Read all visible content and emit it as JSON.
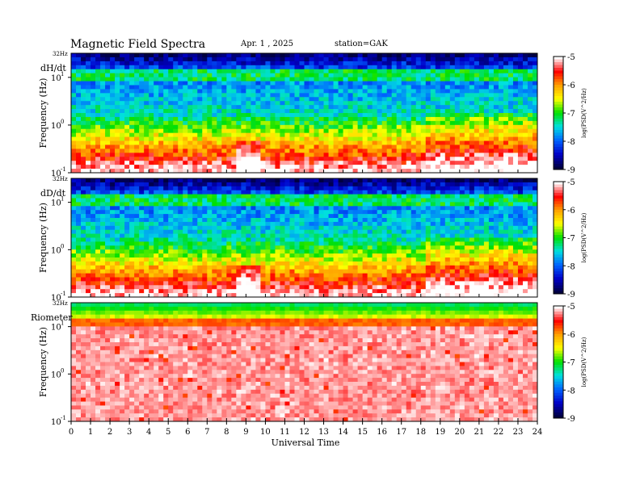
{
  "header": {
    "title": "Magnetic  Field  Spectra",
    "date": "Apr. 1  , 2025",
    "station": "station=GAK"
  },
  "colors": {
    "colormap": [
      "#ffffff",
      "#ff0000",
      "#ffa000",
      "#ffff00",
      "#00e000",
      "#00e0e0",
      "#0064ff",
      "#0000c8",
      "#000040"
    ]
  },
  "chart_data": [
    {
      "type": "heatmap",
      "panel_label": "dH/dt",
      "ylabel": "Frequency  (Hz)",
      "top_label": "32Hz",
      "yticks": [
        "10",
        "10",
        "10"
      ],
      "yexps": [
        "1",
        "0",
        "-1"
      ],
      "ylog": true,
      "ylim": [
        0.1,
        32
      ],
      "xlim": [
        0,
        24
      ],
      "colorbar": {
        "label": "log(PSD(V^2/Hz)",
        "range": [
          -9,
          -5
        ],
        "ticks": [
          "-5",
          "-6",
          "-7",
          "-8",
          "-9"
        ]
      }
    },
    {
      "type": "heatmap",
      "panel_label": "dD/dt",
      "ylabel": "Frequency  (Hz)",
      "top_label": "32Hz",
      "yticks": [
        "10",
        "10",
        "10"
      ],
      "yexps": [
        "1",
        "0",
        "-1"
      ],
      "ylog": true,
      "ylim": [
        0.1,
        32
      ],
      "xlim": [
        0,
        24
      ],
      "colorbar": {
        "label": "log(PSD(V^2/Hz)",
        "range": [
          -9,
          -5
        ],
        "ticks": [
          "-5",
          "-6",
          "-7",
          "-8",
          "-9"
        ]
      }
    },
    {
      "type": "heatmap",
      "panel_label": "Riometer",
      "ylabel": "Frequency  (Hz)",
      "top_label": "32Hz",
      "yticks": [
        "10",
        "10",
        "10"
      ],
      "yexps": [
        "1",
        "0",
        "-1"
      ],
      "ylog": true,
      "ylim": [
        0.1,
        32
      ],
      "xlim": [
        0,
        24
      ],
      "colorbar": {
        "label": "log(PSD(V^2/Hz)",
        "range": [
          -9,
          -5
        ],
        "ticks": [
          "-5",
          "-6",
          "-7",
          "-8",
          "-9"
        ]
      }
    }
  ],
  "xaxis": {
    "label": "Universal  Time",
    "ticks": [
      "0",
      "1",
      "2",
      "3",
      "4",
      "5",
      "6",
      "7",
      "8",
      "9",
      "10",
      "11",
      "12",
      "13",
      "14",
      "15",
      "16",
      "17",
      "18",
      "19",
      "20",
      "21",
      "22",
      "23",
      "24"
    ]
  }
}
